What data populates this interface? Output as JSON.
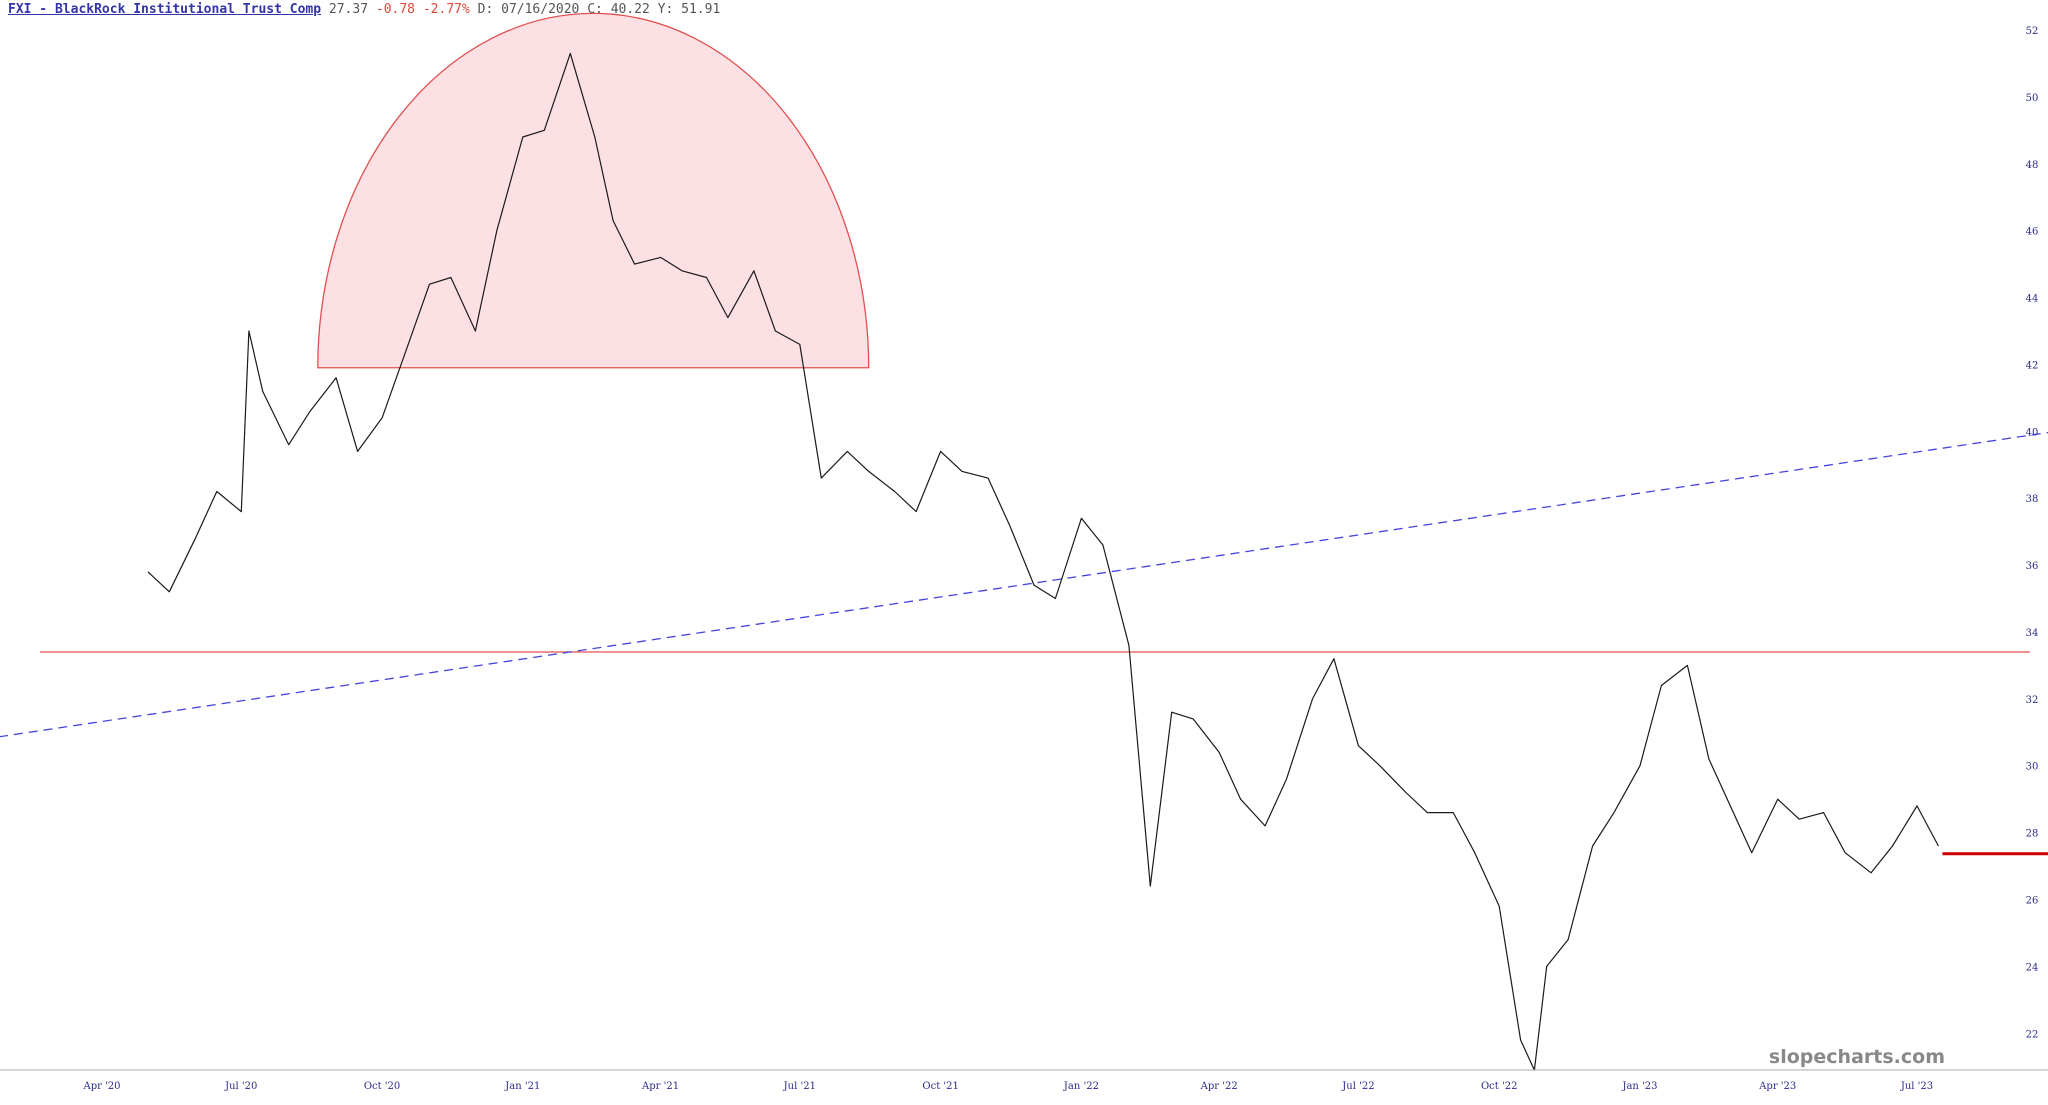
{
  "header": {
    "symbol": "FXI - BlackRock Institutional Trust Comp",
    "last": "27.37",
    "change": "-0.78",
    "change_pct": "-2.77%",
    "date_label": "D: 07/16/2020",
    "close_label": "C: 40.22",
    "y_label": "Y: 51.91"
  },
  "watermark": "slopecharts.com",
  "colors": {
    "price_line": "#1a1a1a",
    "support_line": "#e05050",
    "trend_line": "#4444dd",
    "dome_fill": "#fde0e3",
    "dome_stroke": "#e05050",
    "last_price_marker": "#cc0000",
    "axis_text": "#2b2b8a"
  },
  "chart_data": {
    "type": "line",
    "title": "",
    "xlabel": "",
    "ylabel": "",
    "ylim": [
      20.8,
      52.6
    ],
    "x_ticks": [
      "Apr '20",
      "Jul '20",
      "Oct '20",
      "Jan '21",
      "Apr '21",
      "Jul '21",
      "Oct '21",
      "Jan '22",
      "Apr '22",
      "Jul '22",
      "Oct '22",
      "Jan '23",
      "Apr '23",
      "Jul '23"
    ],
    "y_ticks": [
      52,
      50,
      48,
      46,
      44,
      42,
      40,
      38,
      36,
      34,
      32,
      30,
      28,
      26,
      24,
      22
    ],
    "series": [
      {
        "x": [
          "2020-05-01",
          "2020-05-15",
          "2020-06-01",
          "2020-06-15",
          "2020-07-01",
          "2020-07-06",
          "2020-07-15",
          "2020-08-01",
          "2020-08-15",
          "2020-09-01",
          "2020-09-15",
          "2020-10-01",
          "2020-10-15",
          "2020-11-01",
          "2020-11-15",
          "2020-12-01",
          "2020-12-15",
          "2021-01-01",
          "2021-01-15",
          "2021-02-01",
          "2021-02-17",
          "2021-03-01",
          "2021-03-15",
          "2021-04-01",
          "2021-04-15",
          "2021-05-01",
          "2021-05-15",
          "2021-06-01",
          "2021-06-15",
          "2021-07-01",
          "2021-07-15",
          "2021-08-01",
          "2021-08-15",
          "2021-09-01",
          "2021-09-15",
          "2021-10-01",
          "2021-10-15",
          "2021-11-01",
          "2021-11-15",
          "2021-12-01",
          "2021-12-15",
          "2022-01-01",
          "2022-01-15",
          "2022-02-01",
          "2022-02-15",
          "2022-03-01",
          "2022-03-15",
          "2022-04-01",
          "2022-04-15",
          "2022-05-01",
          "2022-05-15",
          "2022-06-01",
          "2022-06-15",
          "2022-07-01",
          "2022-07-15",
          "2022-08-01",
          "2022-08-15",
          "2022-09-01",
          "2022-09-15",
          "2022-10-01",
          "2022-10-15",
          "2022-10-24",
          "2022-11-01",
          "2022-11-15",
          "2022-12-01",
          "2022-12-15",
          "2023-01-01",
          "2023-01-15",
          "2023-02-01",
          "2023-02-15",
          "2023-03-01",
          "2023-03-15",
          "2023-04-01",
          "2023-04-15",
          "2023-05-01",
          "2023-05-15",
          "2023-06-01",
          "2023-06-15",
          "2023-07-01",
          "2023-07-15"
        ],
        "values": [
          35.8,
          35.2,
          36.8,
          38.2,
          37.6,
          43.0,
          41.2,
          39.6,
          40.6,
          41.6,
          39.4,
          40.4,
          42.2,
          44.4,
          44.6,
          43.0,
          46.0,
          48.8,
          49.0,
          51.3,
          48.8,
          46.3,
          45.0,
          45.2,
          44.8,
          44.6,
          43.4,
          44.8,
          43.0,
          42.6,
          38.6,
          39.4,
          38.8,
          38.2,
          37.6,
          39.4,
          38.8,
          38.6,
          37.2,
          35.4,
          35.0,
          37.4,
          36.6,
          33.6,
          26.4,
          31.6,
          31.4,
          30.4,
          29.0,
          28.2,
          29.6,
          32.0,
          33.2,
          30.6,
          30.0,
          29.2,
          28.6,
          28.6,
          27.4,
          25.8,
          21.8,
          20.9,
          24.0,
          24.8,
          27.6,
          28.6,
          30.0,
          32.4,
          33.0,
          30.2,
          28.8,
          27.4,
          29.0,
          28.4,
          28.6,
          27.4,
          26.8,
          27.6,
          28.8,
          27.6
        ]
      }
    ],
    "annotations": {
      "horizontal_line": 33.4,
      "trend_line": {
        "start": [
          "2020-01-15",
          30.8
        ],
        "end": [
          "2023-09-30",
          40.0
        ]
      },
      "rounded_top": {
        "x_start": "2020-08-20",
        "x_end": "2021-08-15",
        "base": 41.9,
        "peak": 52.5
      },
      "last_price_marker": 27.37
    },
    "grid": false,
    "legend": "none"
  }
}
